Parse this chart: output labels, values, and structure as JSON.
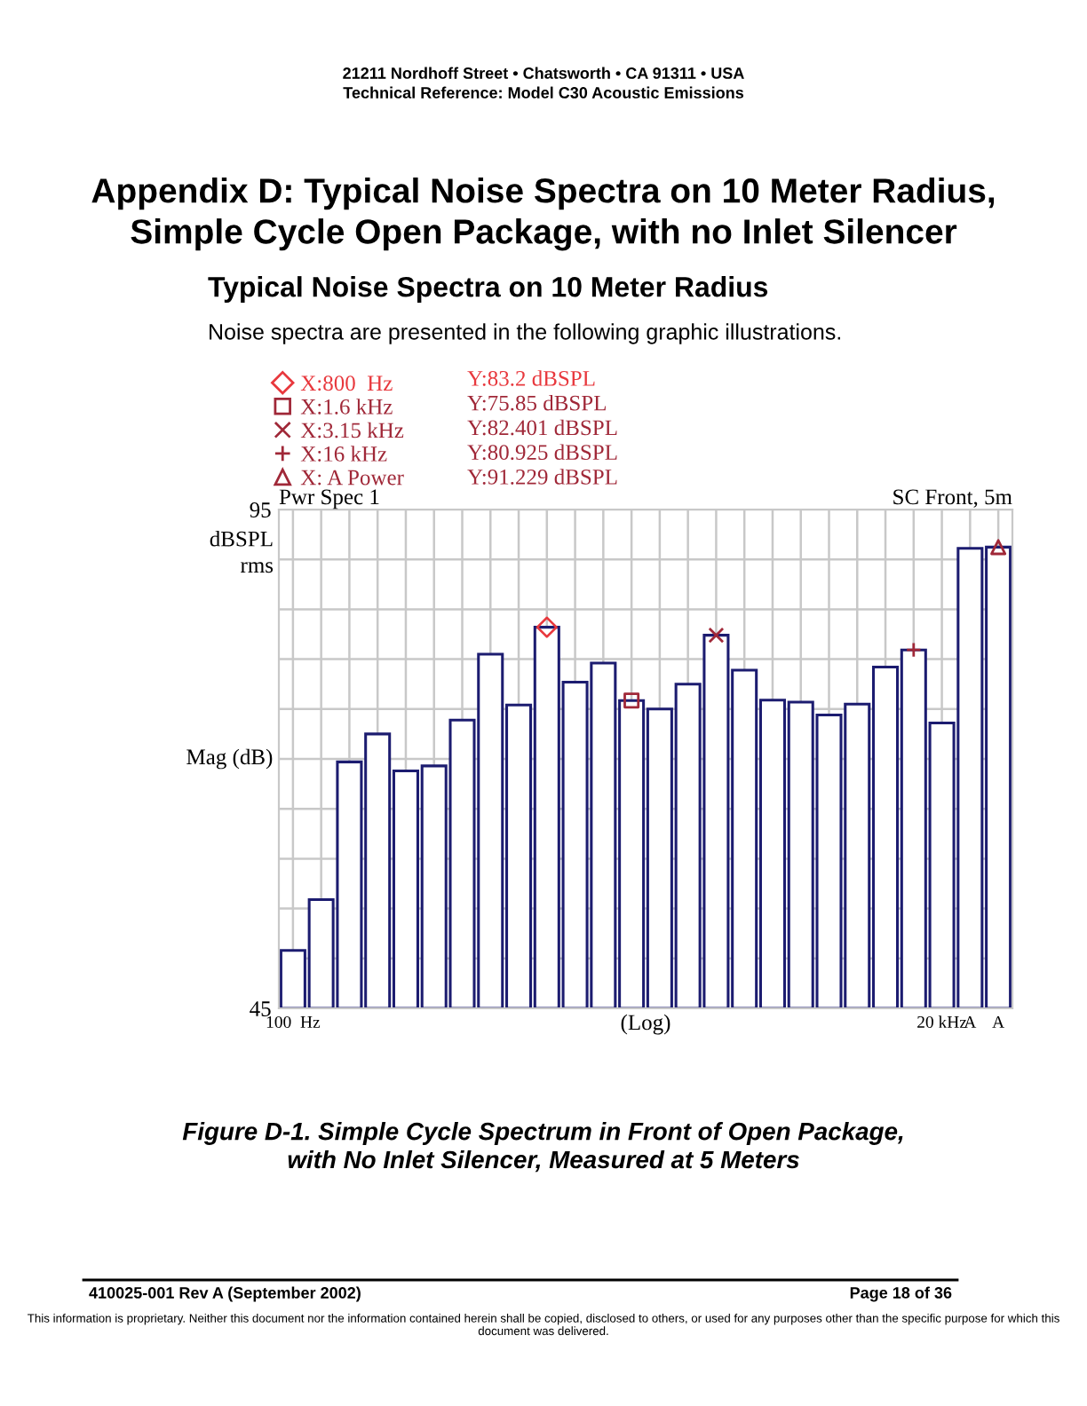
{
  "chart_data": {
    "type": "bar",
    "title": "Appendix D: Typical Noise Spectra on 10 Meter Radius,\nSimple Cycle Open Package, with no Inlet Silencer",
    "subtitle": "Typical Noise Spectra on 10 Meter Radius",
    "xlabel": "(Log)",
    "ylabel": "Mag (dB)",
    "categories": [
      "100  Hz",
      null,
      null,
      null,
      null,
      null,
      null,
      null,
      null,
      null,
      null,
      null,
      null,
      null,
      null,
      null,
      null,
      null,
      null,
      null,
      null,
      null,
      null,
      "20 kHz",
      "A",
      "A"
    ],
    "series": [
      {
        "color": "#1c1c70",
        "values": [
          50.8,
          55.9,
          69.7,
          72.5,
          68.8,
          69.3,
          73.9,
          80.5,
          75.4,
          83.2,
          77.7,
          79.6,
          75.85,
          75.0,
          77.5,
          82.401,
          78.9,
          75.9,
          75.7,
          74.4,
          75.5,
          79.2,
          80.925,
          73.6,
          91.1,
          91.229
        ]
      },
      {
        "type": "scatter",
        "name": "X:800  Hz",
        "marker": "diamond",
        "color": "#e8383d",
        "values": [
          null,
          null,
          null,
          null,
          null,
          null,
          null,
          null,
          null,
          83.2,
          null,
          null,
          null,
          null,
          null,
          null,
          null,
          null,
          null,
          null,
          null,
          null,
          null,
          null,
          null,
          null
        ]
      },
      {
        "type": "scatter",
        "name": "X:1.6 kHz",
        "marker": "square",
        "color": "#a02838",
        "values": [
          null,
          null,
          null,
          null,
          null,
          null,
          null,
          null,
          null,
          null,
          null,
          null,
          75.85,
          null,
          null,
          null,
          null,
          null,
          null,
          null,
          null,
          null,
          null,
          null,
          null,
          null
        ]
      },
      {
        "type": "scatter",
        "name": "X:3.15 kHz",
        "marker": "x",
        "color": "#a02838",
        "values": [
          null,
          null,
          null,
          null,
          null,
          null,
          null,
          null,
          null,
          null,
          null,
          null,
          null,
          null,
          null,
          82.401,
          null,
          null,
          null,
          null,
          null,
          null,
          null,
          null,
          null,
          null
        ]
      },
      {
        "type": "scatter",
        "name": "X:16 kHz",
        "marker": "cross",
        "color": "#a02838",
        "values": [
          null,
          null,
          null,
          null,
          null,
          null,
          null,
          null,
          null,
          null,
          null,
          null,
          null,
          null,
          null,
          null,
          null,
          null,
          null,
          null,
          null,
          null,
          80.925,
          null,
          null,
          null
        ]
      },
      {
        "type": "scatter",
        "name": "X: A Power",
        "marker": "triangle",
        "color": "#a02838",
        "values": [
          null,
          null,
          null,
          null,
          null,
          null,
          null,
          null,
          null,
          null,
          null,
          null,
          null,
          null,
          null,
          null,
          null,
          null,
          null,
          null,
          null,
          null,
          null,
          null,
          null,
          91.229
        ]
      }
    ],
    "ylim": [
      45,
      95
    ],
    "yticks": [
      45,
      95
    ],
    "grid": true,
    "legend": "top left",
    "annotations": [
      "21211 Nordhoff Street • Chatsworth • CA 91311 • USA",
      "Technical Reference: Model C30 Acoustic Emissions",
      "Noise spectra are presented in the following graphic illustrations.",
      "Pwr Spec 1",
      "SC Front, 5m",
      "dBSPL\nrms",
      "Y:83.2 dBSPL",
      "Y:75.85 dBSPL",
      "Y:82.401 dBSPL",
      "Y:80.925 dBSPL",
      "Y:91.229 dBSPL",
      "Figure D-1. Simple Cycle Spectrum in Front of Open Package,\nwith No Inlet Silencer, Measured at 5 Meters",
      "410025-001 Rev A (September 2002)",
      "Page 18 of 36",
      "This information is proprietary. Neither this document nor the information contained herein shall be copied, disclosed to others, or used for any purposes other than the specific purpose for which this document was delivered."
    ]
  }
}
